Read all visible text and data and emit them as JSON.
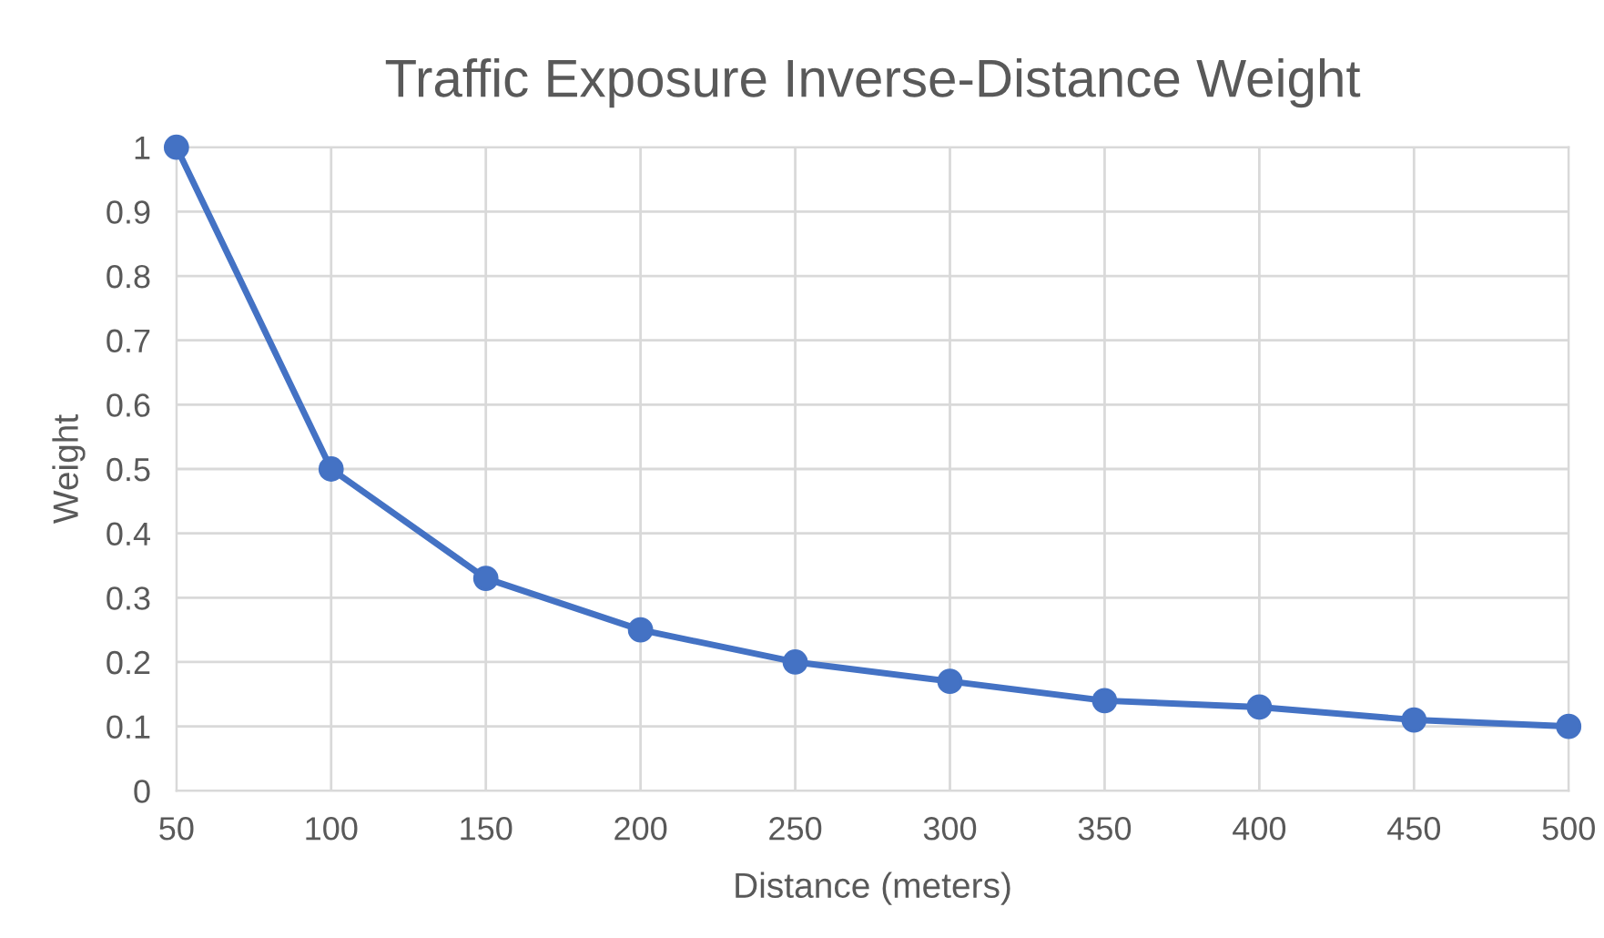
{
  "chart_data": {
    "type": "line",
    "title": "Traffic Exposure Inverse-Distance Weight",
    "xlabel": "Distance (meters)",
    "ylabel": "Weight",
    "x": [
      50,
      100,
      150,
      200,
      250,
      300,
      350,
      400,
      450,
      500
    ],
    "series": [
      {
        "color": "#4472c4",
        "values": [
          1,
          0.5,
          0.33,
          0.25,
          0.2,
          0.17,
          0.14,
          0.13,
          0.11,
          0.1
        ]
      }
    ],
    "xlim": [
      50,
      500
    ],
    "xticks": [
      50,
      100,
      150,
      200,
      250,
      300,
      350,
      400,
      450,
      500
    ],
    "ylim": [
      0,
      1
    ],
    "yticks": [
      0,
      0.1,
      0.2,
      0.3,
      0.4,
      0.5,
      0.6,
      0.7,
      0.8,
      0.9,
      1
    ],
    "grid": true,
    "marker": "circle",
    "line_style": "solid"
  }
}
